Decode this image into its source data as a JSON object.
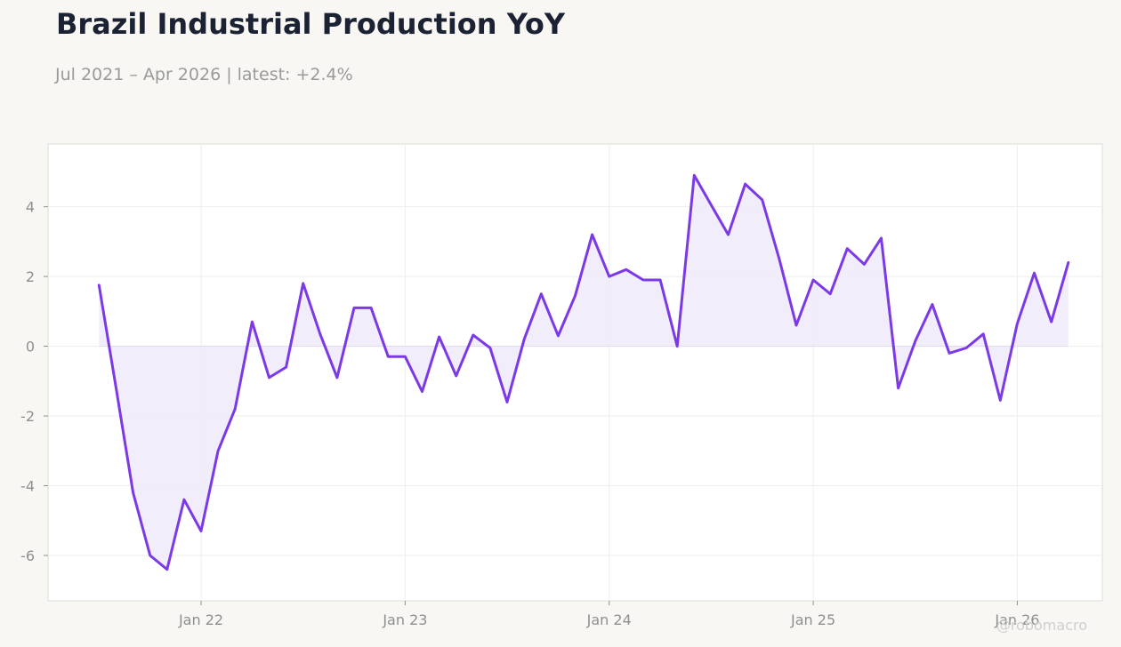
{
  "header": {
    "title": "Brazil Industrial Production YoY",
    "subtitle": "Jul 2021 – Apr 2026 | latest: +2.4%"
  },
  "watermark": "@robomacro",
  "colors": {
    "line": "#7c3ae6",
    "fill": "#f0ebfb",
    "background": "#f8f7f4",
    "plot_background": "#ffffff",
    "grid": "#eeeeee",
    "zero_line": "#e2daf7",
    "tick_text": "#8f8f8f",
    "frame": "#dcdcd6"
  },
  "chart_data": {
    "type": "area",
    "title": "Brazil Industrial Production YoY",
    "subtitle": "Jul 2021 – Apr 2026 | latest: +2.4%",
    "xlabel": "",
    "ylabel": "",
    "x_ticks": [
      "Jan 22",
      "Jan 23",
      "Jan 24",
      "Jan 25",
      "Jan 26"
    ],
    "y_ticks": [
      -6,
      -4,
      -2,
      0,
      2,
      4
    ],
    "ylim": [
      -7.3,
      5.8
    ],
    "xlim": [
      "2021-04",
      "2026-06"
    ],
    "grid": true,
    "legend": "none",
    "series": [
      {
        "x": [
          "2021-07",
          "2021-08",
          "2021-09",
          "2021-10",
          "2021-11",
          "2021-12",
          "2022-01",
          "2022-02",
          "2022-03",
          "2022-04",
          "2022-05",
          "2022-06",
          "2022-07",
          "2022-08",
          "2022-09",
          "2022-10",
          "2022-11",
          "2022-12",
          "2023-01",
          "2023-02",
          "2023-03",
          "2023-04",
          "2023-05",
          "2023-06",
          "2023-07",
          "2023-08",
          "2023-09",
          "2023-10",
          "2023-11",
          "2023-12",
          "2024-01",
          "2024-02",
          "2024-03",
          "2024-04",
          "2024-05",
          "2024-06",
          "2024-07",
          "2024-08",
          "2024-09",
          "2024-10",
          "2024-11",
          "2024-12",
          "2025-01",
          "2025-02",
          "2025-03",
          "2025-04",
          "2025-05",
          "2025-06",
          "2025-07",
          "2025-08",
          "2025-09",
          "2025-10",
          "2025-11",
          "2025-12",
          "2026-01",
          "2026-02",
          "2026-03",
          "2026-04"
        ],
        "values": [
          1.75,
          -1.2,
          -4.2,
          -6.0,
          -6.4,
          -4.4,
          -5.3,
          -3.0,
          -1.8,
          0.7,
          -0.9,
          -0.6,
          1.8,
          0.35,
          -0.9,
          1.1,
          1.1,
          -0.3,
          -0.3,
          -1.3,
          0.27,
          -0.85,
          0.32,
          -0.05,
          -1.6,
          0.2,
          1.5,
          0.3,
          1.45,
          3.2,
          2.0,
          2.2,
          1.9,
          1.9,
          0.0,
          4.9,
          4.05,
          3.2,
          4.65,
          4.2,
          2.5,
          0.6,
          1.9,
          1.5,
          2.8,
          2.35,
          3.1,
          -1.2,
          0.15,
          1.2,
          -0.2,
          -0.05,
          0.35,
          -1.55,
          0.65,
          2.1,
          0.7,
          2.4
        ]
      }
    ]
  }
}
